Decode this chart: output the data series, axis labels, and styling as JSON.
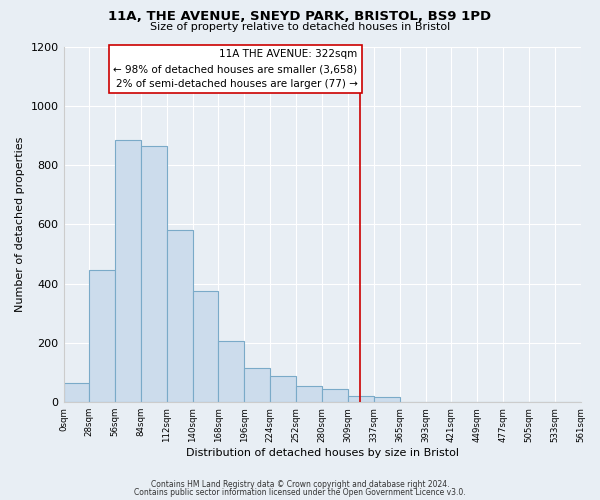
{
  "title": "11A, THE AVENUE, SNEYD PARK, BRISTOL, BS9 1PD",
  "subtitle": "Size of property relative to detached houses in Bristol",
  "xlabel": "Distribution of detached houses by size in Bristol",
  "ylabel": "Number of detached properties",
  "bar_values": [
    65,
    445,
    885,
    865,
    580,
    375,
    205,
    115,
    90,
    55,
    45,
    22,
    18,
    0,
    0,
    0,
    0,
    0,
    0,
    0
  ],
  "bar_edges": [
    0,
    28,
    56,
    84,
    112,
    140,
    168,
    196,
    224,
    252,
    280,
    309,
    337,
    365,
    393,
    421,
    449,
    477,
    505,
    533,
    561
  ],
  "tick_labels": [
    "0sqm",
    "28sqm",
    "56sqm",
    "84sqm",
    "112sqm",
    "140sqm",
    "168sqm",
    "196sqm",
    "224sqm",
    "252sqm",
    "280sqm",
    "309sqm",
    "337sqm",
    "365sqm",
    "393sqm",
    "421sqm",
    "449sqm",
    "477sqm",
    "505sqm",
    "533sqm",
    "561sqm"
  ],
  "bar_color": "#ccdcec",
  "bar_edge_color": "#7aaac8",
  "property_line_x": 322,
  "property_line_color": "#cc0000",
  "annotation_title": "11A THE AVENUE: 322sqm",
  "annotation_line1": "← 98% of detached houses are smaller (3,658)",
  "annotation_line2": "2% of semi-detached houses are larger (77) →",
  "annotation_box_color": "#ffffff",
  "annotation_box_edge": "#cc0000",
  "ylim": [
    0,
    1200
  ],
  "yticks": [
    0,
    200,
    400,
    600,
    800,
    1000,
    1200
  ],
  "footer_line1": "Contains HM Land Registry data © Crown copyright and database right 2024.",
  "footer_line2": "Contains public sector information licensed under the Open Government Licence v3.0.",
  "background_color": "#e8eef4"
}
